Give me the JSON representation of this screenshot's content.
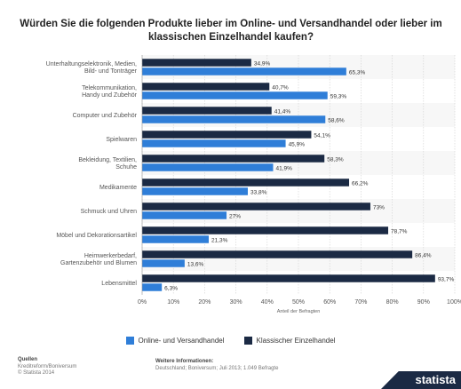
{
  "title": "Würden Sie die folgenden Produkte lieber im Online- und Versandhandel oder lieber im klassischen Einzelhandel kaufen?",
  "chart_data": {
    "type": "bar",
    "orientation": "horizontal",
    "categories": [
      "Unterhaltungselektronik, Medien, Bild- und Tonträger",
      "Telekommunikation, Handy und Zubehör",
      "Computer und Zubehör",
      "Spielwaren",
      "Bekleidung, Textilien, Schuhe",
      "Medikamente",
      "Schmuck und Uhren",
      "Möbel und Dekorationsartikel",
      "Heimwerkerbedarf, Gartenzubehör und Blumen",
      "Lebensmittel"
    ],
    "series": [
      {
        "name": "Klassischer Einzelhandel",
        "color": "#1b2a44",
        "values": [
          34.9,
          40.7,
          41.4,
          54.1,
          58.3,
          66.2,
          73,
          78.7,
          86.4,
          93.7
        ],
        "labels": [
          "34,9%",
          "40,7%",
          "41,4%",
          "54,1%",
          "58,3%",
          "66,2%",
          "73%",
          "78,7%",
          "86,4%",
          "93,7%"
        ]
      },
      {
        "name": "Online- und Versandhandel",
        "color": "#2f7ed8",
        "values": [
          65.3,
          59.3,
          58.6,
          45.9,
          41.9,
          33.8,
          27,
          21.3,
          13.6,
          6.3
        ],
        "labels": [
          "65,3%",
          "59,3%",
          "58,6%",
          "45,9%",
          "41,9%",
          "33,8%",
          "27%",
          "21,3%",
          "13,6%",
          "6,3%"
        ]
      }
    ],
    "xlim": [
      0,
      100
    ],
    "xticks": [
      "0%",
      "10%",
      "20%",
      "30%",
      "40%",
      "50%",
      "60%",
      "70%",
      "80%",
      "90%",
      "100%"
    ],
    "xlabel": "Anteil der Befragten",
    "grid": true
  },
  "legend": {
    "online": "Online- und Versandhandel",
    "classic": "Klassischer Einzelhandel",
    "online_color": "#2f7ed8",
    "classic_color": "#1b2a44"
  },
  "footer": {
    "sources_heading": "Quellen",
    "sources": [
      "Kreditreform/Boniversum",
      "© Statista 2014"
    ],
    "info_heading": "Weitere Informationen:",
    "info": "Deutschland; Boniversum; Juli 2013; 1.049 Befragte"
  },
  "brand": "statista"
}
